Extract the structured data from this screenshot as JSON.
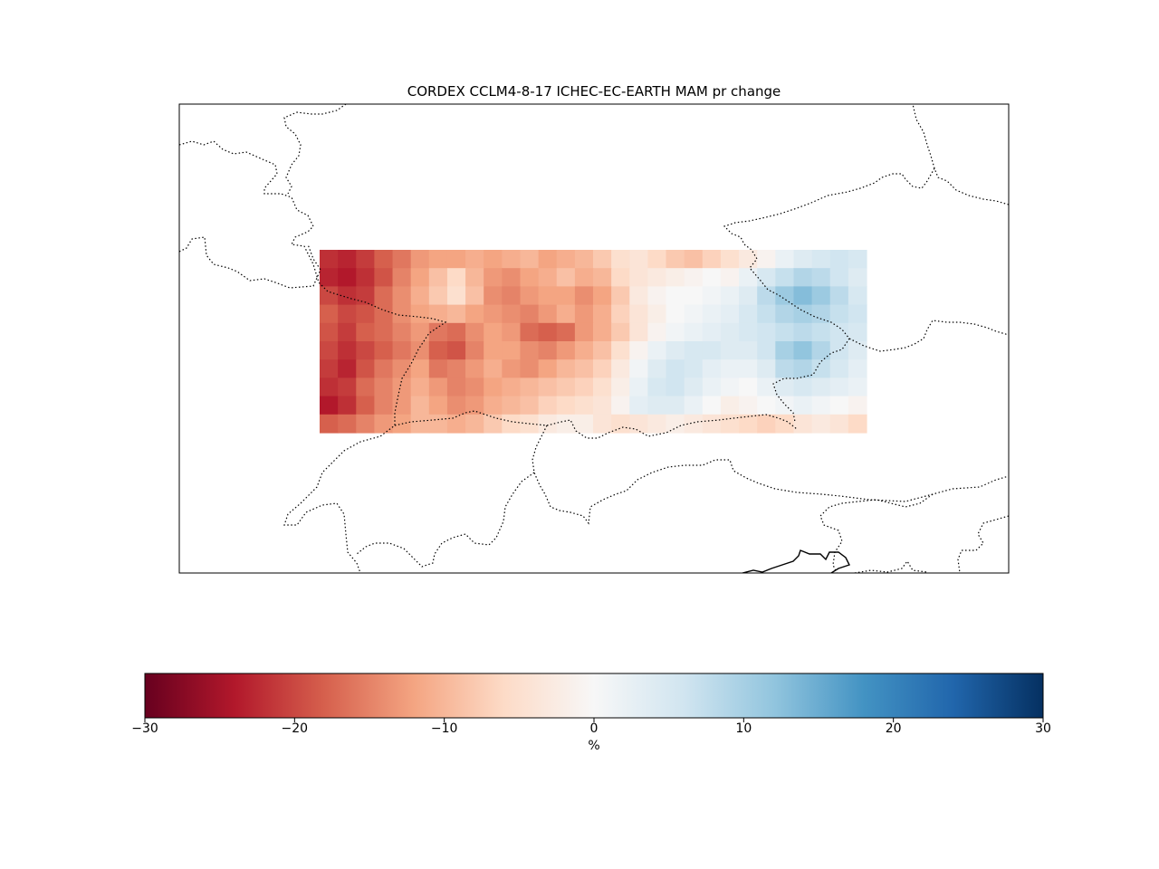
{
  "title": "CORDEX CCLM4-8-17 ICHEC-EC-EARTH MAM pr change",
  "colorbar": {
    "unit": "%",
    "vmin": -30,
    "vmax": 30,
    "ticks": [
      -30,
      -20,
      -10,
      0,
      10,
      20,
      30
    ],
    "tick_labels": [
      "−30",
      "−20",
      "−10",
      "0",
      "10",
      "20",
      "30"
    ],
    "colormap": "RdBu",
    "colormap_stops": [
      "#67001f",
      "#b2182b",
      "#d6604d",
      "#f4a582",
      "#fddbc7",
      "#f7f7f7",
      "#d1e5f0",
      "#92c5de",
      "#4393c3",
      "#2166ac",
      "#053061"
    ]
  },
  "chart_data": {
    "type": "heatmap",
    "title": "CORDEX CCLM4-8-17 ICHEC-EC-EARTH MAM pr change",
    "colorbar_label": "%",
    "zlim": [
      -30,
      30
    ],
    "grid_rows": 10,
    "grid_cols": 30,
    "values": [
      [
        -22,
        -23,
        -21,
        -18,
        -16,
        -13,
        -12,
        -12,
        -11,
        -12,
        -11,
        -10,
        -12,
        -11,
        -10,
        -8,
        -5,
        -4,
        -6,
        -8,
        -9,
        -7,
        -5,
        -3,
        -1,
        2,
        4,
        5,
        6,
        5
      ],
      [
        -23,
        -24,
        -22,
        -19,
        -15,
        -12,
        -9,
        -6,
        -10,
        -13,
        -14,
        -12,
        -11,
        -9,
        -11,
        -10,
        -6,
        -4,
        -3,
        -2,
        -1,
        0,
        -1,
        2,
        5,
        7,
        9,
        8,
        6,
        4
      ],
      [
        -20,
        -22,
        -21,
        -17,
        -14,
        -11,
        -8,
        -5,
        -9,
        -14,
        -15,
        -13,
        -12,
        -12,
        -14,
        -12,
        -8,
        -3,
        -1,
        0,
        0,
        1,
        2,
        4,
        8,
        11,
        13,
        11,
        8,
        5
      ],
      [
        -18,
        -20,
        -19,
        -17,
        -14,
        -12,
        -11,
        -10,
        -12,
        -13,
        -14,
        -15,
        -13,
        -11,
        -13,
        -11,
        -7,
        -4,
        -2,
        0,
        1,
        2,
        3,
        5,
        7,
        9,
        10,
        9,
        7,
        6
      ],
      [
        -19,
        -21,
        -18,
        -17,
        -15,
        -13,
        -16,
        -17,
        -14,
        -12,
        -13,
        -17,
        -18,
        -17,
        -13,
        -11,
        -8,
        -4,
        -1,
        1,
        2,
        3,
        4,
        5,
        6,
        7,
        8,
        7,
        6,
        5
      ],
      [
        -20,
        -22,
        -20,
        -18,
        -16,
        -14,
        -18,
        -19,
        -15,
        -12,
        -12,
        -14,
        -15,
        -13,
        -11,
        -9,
        -5,
        -1,
        2,
        4,
        5,
        5,
        4,
        4,
        6,
        10,
        12,
        9,
        6,
        4
      ],
      [
        -21,
        -23,
        -19,
        -16,
        -14,
        -12,
        -16,
        -15,
        -13,
        -11,
        -13,
        -14,
        -12,
        -10,
        -9,
        -7,
        -3,
        1,
        4,
        6,
        5,
        3,
        2,
        2,
        4,
        8,
        9,
        7,
        5,
        3
      ],
      [
        -22,
        -21,
        -17,
        -15,
        -13,
        -11,
        -13,
        -15,
        -14,
        -12,
        -11,
        -10,
        -9,
        -8,
        -7,
        -5,
        -2,
        2,
        5,
        6,
        4,
        2,
        1,
        0,
        2,
        4,
        5,
        4,
        3,
        2
      ],
      [
        -24,
        -22,
        -18,
        -15,
        -13,
        -10,
        -12,
        -14,
        -13,
        -11,
        -10,
        -9,
        -7,
        -6,
        -5,
        -4,
        -1,
        3,
        4,
        4,
        2,
        0,
        -2,
        -1,
        0,
        1,
        2,
        1,
        0,
        -1
      ],
      [
        -18,
        -17,
        -15,
        -13,
        -12,
        -10,
        -10,
        -11,
        -10,
        -8,
        -6,
        -5,
        -3,
        -2,
        -2,
        -4,
        -5,
        -4,
        -3,
        -2,
        -3,
        -4,
        -5,
        -6,
        -7,
        -6,
        -4,
        -3,
        -4,
        -6
      ]
    ]
  }
}
